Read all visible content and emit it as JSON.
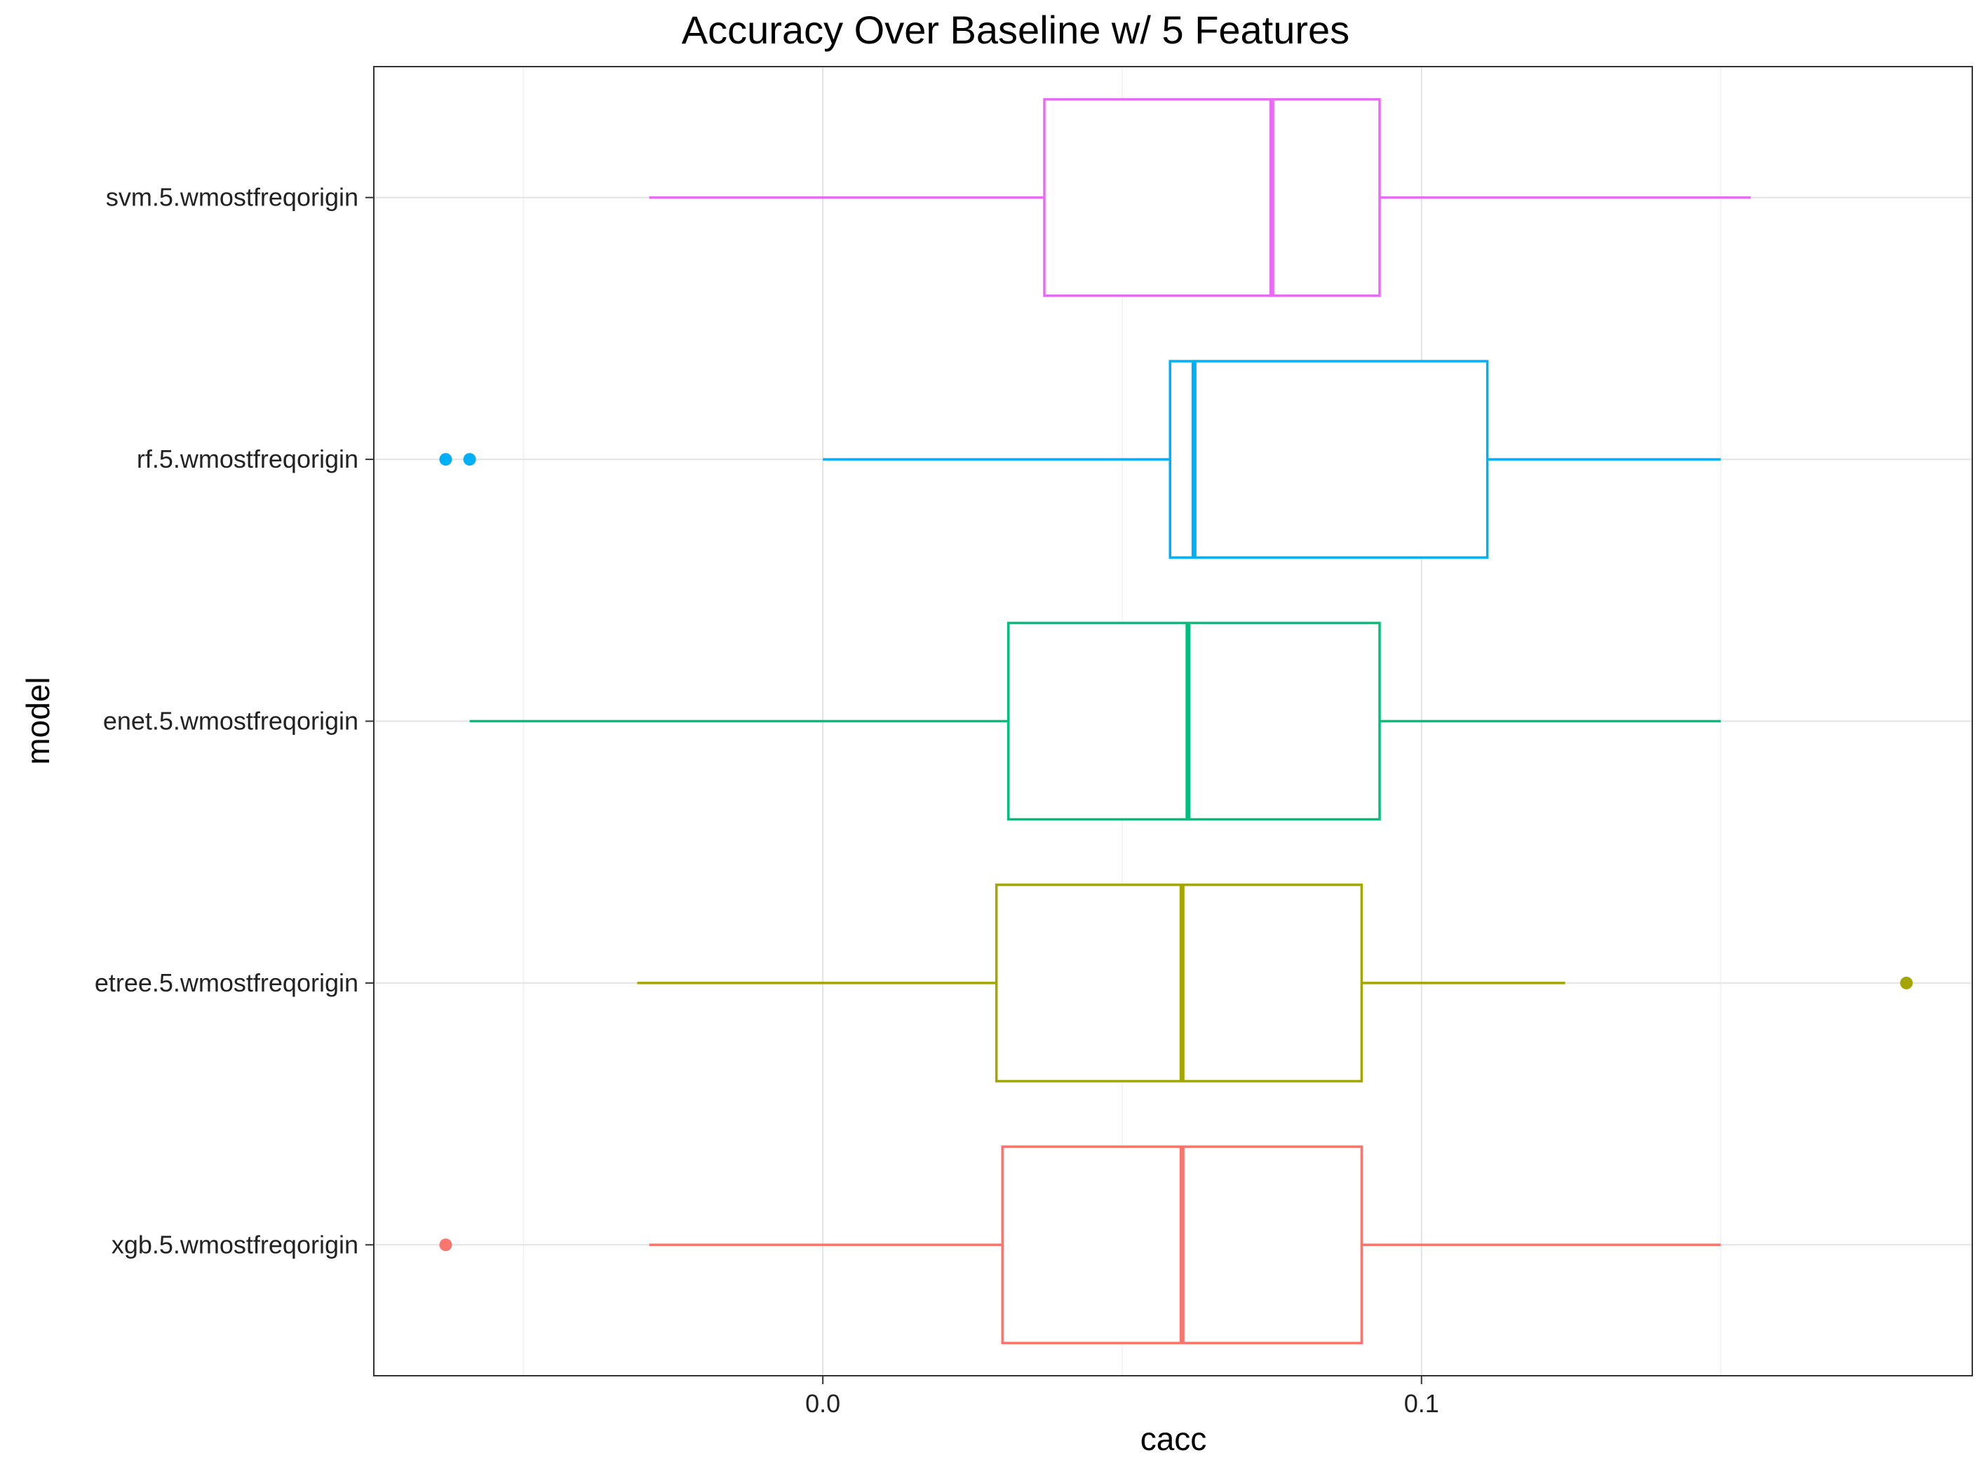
{
  "chart_data": {
    "type": "boxplot",
    "orientation": "horizontal",
    "title": "Accuracy Over Baseline w/ 5 Features",
    "xlabel": "cacc",
    "ylabel": "model",
    "xlim": [
      -0.075,
      0.192
    ],
    "x_ticks": [
      0.0,
      0.1
    ],
    "x_tick_labels": [
      "0.0",
      "0.1"
    ],
    "grid": true,
    "legend": "none",
    "categories": [
      "xgb.5.wmostfreqorigin",
      "etree.5.wmostfreqorigin",
      "enet.5.wmostfreqorigin",
      "rf.5.wmostfreqorigin",
      "svm.5.wmostfreqorigin"
    ],
    "series": [
      {
        "category": "xgb.5.wmostfreqorigin",
        "color": "#F8766D",
        "whisker_low": -0.029,
        "q1": 0.03,
        "median": 0.06,
        "q3": 0.09,
        "whisker_high": 0.15,
        "outliers": [
          -0.063
        ]
      },
      {
        "category": "etree.5.wmostfreqorigin",
        "color": "#A3A500",
        "whisker_low": -0.031,
        "q1": 0.029,
        "median": 0.06,
        "q3": 0.09,
        "whisker_high": 0.124,
        "outliers": [
          0.181
        ]
      },
      {
        "category": "enet.5.wmostfreqorigin",
        "color": "#00BF7D",
        "whisker_low": -0.059,
        "q1": 0.031,
        "median": 0.061,
        "q3": 0.093,
        "whisker_high": 0.15,
        "outliers": []
      },
      {
        "category": "rf.5.wmostfreqorigin",
        "color": "#00B0F6",
        "whisker_low": 0.0,
        "q1": 0.058,
        "median": 0.062,
        "q3": 0.111,
        "whisker_high": 0.15,
        "outliers": [
          -0.063,
          -0.059
        ]
      },
      {
        "category": "svm.5.wmostfreqorigin",
        "color": "#E76BF3",
        "whisker_low": -0.029,
        "q1": 0.037,
        "median": 0.075,
        "q3": 0.093,
        "whisker_high": 0.155,
        "outliers": []
      }
    ]
  }
}
